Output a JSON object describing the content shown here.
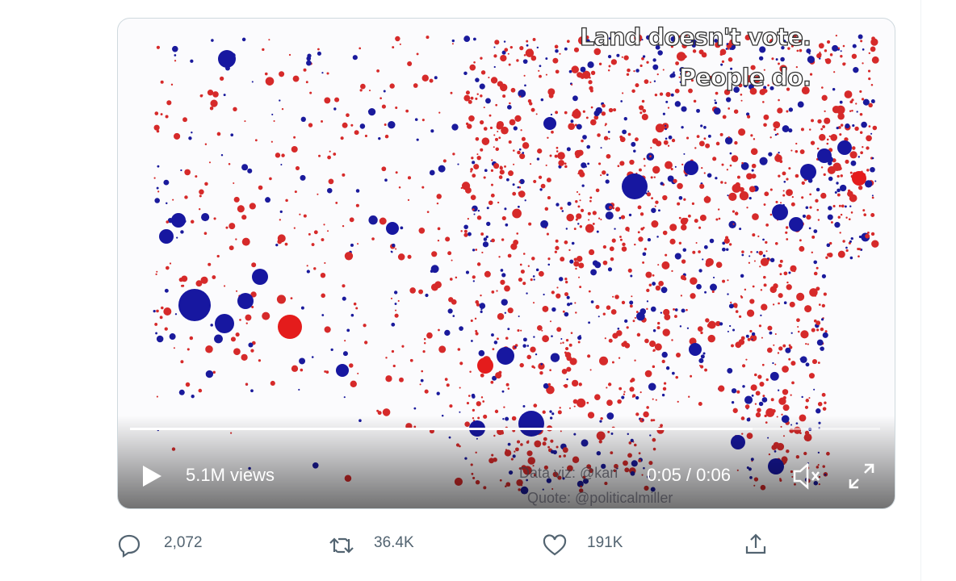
{
  "video": {
    "caption_lines": [
      "Land doesn't vote.",
      "People do."
    ],
    "views": "5.1M views",
    "credits": [
      "Data viz: @kari",
      "Quote: @politicalmiller"
    ],
    "time": "0:05 / 0:06"
  },
  "actions": {
    "replies": "2,072",
    "reposts": "36.4K",
    "likes": "191K"
  }
}
